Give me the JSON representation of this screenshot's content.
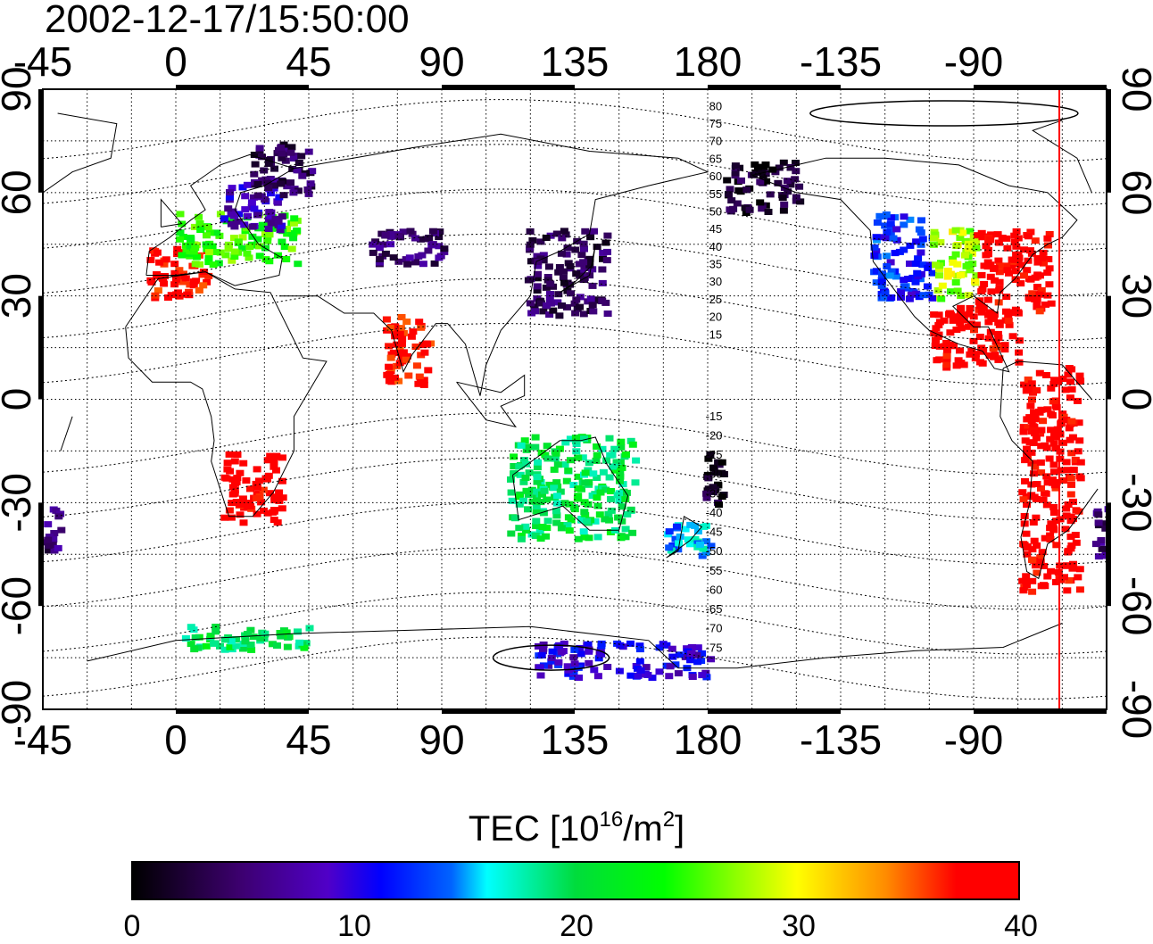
{
  "map": {
    "timestamp": "2002-12-17/15:50:00",
    "projection": "cylindrical, centered at 60E",
    "lon_ticks": [
      0,
      45,
      90,
      135,
      180,
      -135,
      -90,
      -45
    ],
    "lon_tick_labels": [
      "0",
      "45",
      "90",
      "135",
      "180",
      "-135",
      "-90",
      "-45"
    ],
    "lat_ticks": [
      90,
      60,
      30,
      0,
      -30,
      -60,
      -90
    ],
    "lat_tick_labels": [
      "90",
      "60",
      "30",
      "0",
      "-30",
      "-60",
      "-90"
    ],
    "grid": "dotted, every 15 degrees",
    "terminator_longitude": -61,
    "terminator_color": "#ff0000",
    "contour_labels_north": [
      "80",
      "75",
      "70",
      "65",
      "60",
      "55",
      "50",
      "45",
      "40",
      "35",
      "30",
      "25",
      "20",
      "15"
    ],
    "contour_labels_south": [
      "-15",
      "-20",
      "-25",
      "-30",
      "-35",
      "-40",
      "-45",
      "-50",
      "-55",
      "-60",
      "-65",
      "-70",
      "-75"
    ]
  },
  "colorbar": {
    "title_prefix": "TEC  [10",
    "title_exp1": "16",
    "title_mid": "/m",
    "title_exp2": "2",
    "title_suffix": "]",
    "min": 0,
    "max": 40,
    "tick_labels": [
      "0",
      "10",
      "20",
      "30",
      "40"
    ],
    "colormap": "black-purple-blue-cyan-green-yellow-red"
  },
  "chart_data": {
    "type": "heatmap",
    "quantity": "TEC",
    "unit": "10^16/m^2",
    "value_range": [
      0,
      40
    ],
    "regions": [
      {
        "lon": [
          -10,
          10
        ],
        "lat": [
          30,
          45
        ],
        "tec": 38
      },
      {
        "lon": [
          0,
          40
        ],
        "lat": [
          40,
          55
        ],
        "tec": 25
      },
      {
        "lon": [
          15,
          35
        ],
        "lat": [
          50,
          65
        ],
        "tec": 8
      },
      {
        "lon": [
          25,
          45
        ],
        "lat": [
          60,
          75
        ],
        "tec": 4
      },
      {
        "lon": [
          65,
          90
        ],
        "lat": [
          40,
          50
        ],
        "tec": 5
      },
      {
        "lon": [
          118,
          145
        ],
        "lat": [
          25,
          50
        ],
        "tec": 4
      },
      {
        "lon": [
          -175,
          -150
        ],
        "lat": [
          55,
          70
        ],
        "tec": 2
      },
      {
        "lon": [
          -125,
          -105
        ],
        "lat": [
          30,
          55
        ],
        "tec": 12
      },
      {
        "lon": [
          -105,
          -90
        ],
        "lat": [
          30,
          50
        ],
        "tec": 28
      },
      {
        "lon": [
          -90,
          -65
        ],
        "lat": [
          25,
          50
        ],
        "tec": 39
      },
      {
        "lon": [
          -105,
          -75
        ],
        "lat": [
          10,
          28
        ],
        "tec": 39
      },
      {
        "lon": [
          -75,
          -55
        ],
        "lat": [
          -55,
          10
        ],
        "tec": 39
      },
      {
        "lon": [
          -50,
          -40
        ],
        "lat": [
          -45,
          -30
        ],
        "tec": 5
      },
      {
        "lon": [
          15,
          35
        ],
        "lat": [
          -35,
          -15
        ],
        "tec": 39
      },
      {
        "lon": [
          70,
          85
        ],
        "lat": [
          5,
          25
        ],
        "tec": 38
      },
      {
        "lon": [
          112,
          155
        ],
        "lat": [
          -40,
          -10
        ],
        "tec": 20
      },
      {
        "lon": [
          165,
          180
        ],
        "lat": [
          -45,
          -35
        ],
        "tec": 15
      },
      {
        "lon": [
          178,
          -175
        ],
        "lat": [
          -30,
          -15
        ],
        "tec": 2
      },
      {
        "lon": [
          120,
          180
        ],
        "lat": [
          -80,
          -70
        ],
        "tec": 10
      },
      {
        "lon": [
          0,
          45
        ],
        "lat": [
          -72,
          -65
        ],
        "tec": 20
      }
    ]
  }
}
